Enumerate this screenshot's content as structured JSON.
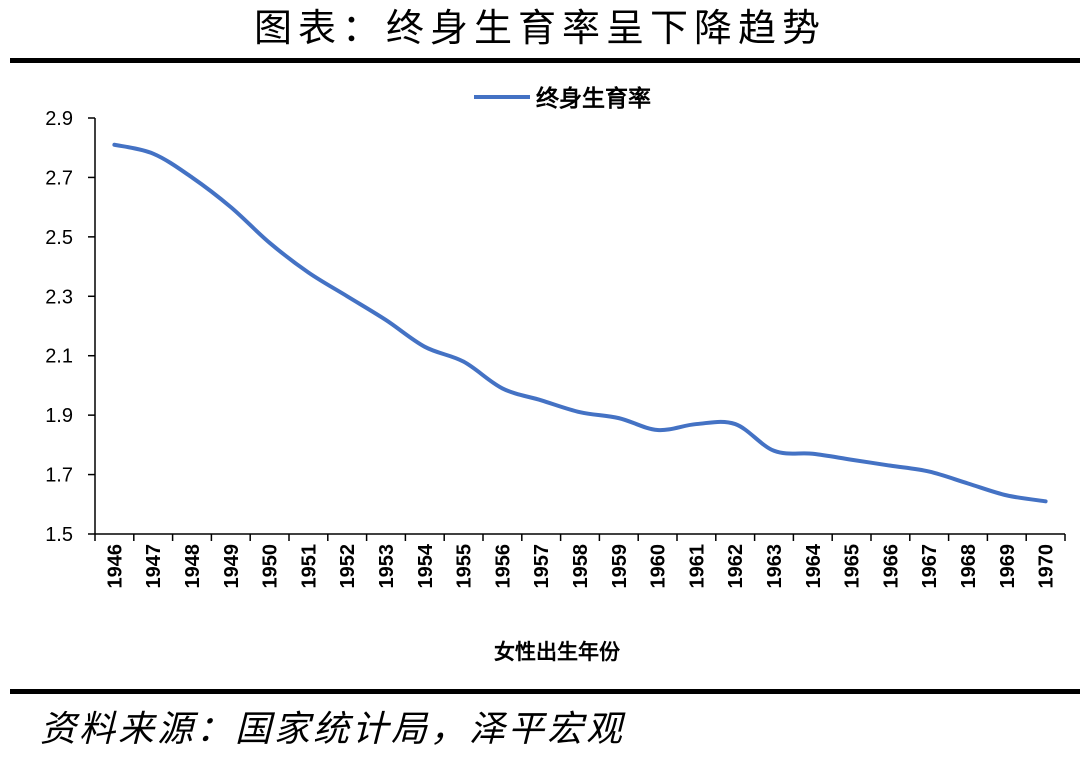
{
  "title": "图表：终身生育率呈下降趋势",
  "source": "资料来源：国家统计局，泽平宏观",
  "colors": {
    "series": "#4472C4",
    "axis": "#000000"
  },
  "chart_data": {
    "type": "line",
    "title": "",
    "xlabel": "女性出生年份",
    "ylabel": "",
    "legend_position": "top-center",
    "ylim": [
      1.5,
      2.9
    ],
    "yticks": [
      "1.5",
      "1.7",
      "1.9",
      "2.1",
      "2.3",
      "2.5",
      "2.7",
      "2.9"
    ],
    "grid": false,
    "categories": [
      "1946",
      "1947",
      "1948",
      "1949",
      "1950",
      "1951",
      "1952",
      "1953",
      "1954",
      "1955",
      "1956",
      "1957",
      "1958",
      "1959",
      "1960",
      "1961",
      "1962",
      "1963",
      "1964",
      "1965",
      "1966",
      "1967",
      "1968",
      "1969",
      "1970"
    ],
    "series": [
      {
        "name": "终身生育率",
        "values": [
          2.81,
          2.78,
          2.7,
          2.6,
          2.48,
          2.38,
          2.3,
          2.22,
          2.13,
          2.08,
          1.99,
          1.95,
          1.91,
          1.89,
          1.85,
          1.87,
          1.87,
          1.78,
          1.77,
          1.75,
          1.73,
          1.71,
          1.67,
          1.63,
          1.61
        ]
      }
    ]
  }
}
